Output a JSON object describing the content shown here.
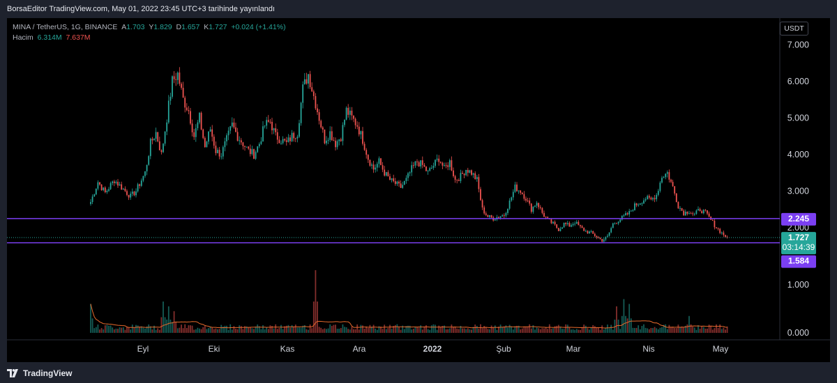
{
  "header": {
    "publish_text": "BorsaEditor TradingView.com, May 01, 2022 23:45 UTC+3 tarihinde yayınlandı"
  },
  "legend": {
    "symbol": "MINA / TetherUS, 1G, BINANCE",
    "open_label": "A",
    "open": "1.703",
    "high_label": "Y",
    "high": "1.829",
    "low_label": "D",
    "low": "1.657",
    "close_label": "K",
    "close": "1.727",
    "change": "+0.024 (+1.41%)",
    "volume_label": "Hacim",
    "volume": "6.314M",
    "volume_ma": "7.637M"
  },
  "currency_button": "USDT",
  "footer": {
    "brand": "TradingView"
  },
  "colors": {
    "up": "#26a69a",
    "down": "#ef5350",
    "level_line": "#7b3ff2",
    "volume_ma": "#e66a2c"
  },
  "chart_data": {
    "type": "candlestick",
    "symbol": "MINA / TetherUS",
    "interval": "1G",
    "exchange": "BINANCE",
    "x_ticks": [
      "Eyl",
      "Eki",
      "Kas",
      "Ara",
      "2022",
      "Şub",
      "Mar",
      "Nis",
      "May"
    ],
    "y_ticks": [
      "7.000",
      "6.000",
      "5.000",
      "4.000",
      "3.000",
      "2.000"
    ],
    "volume_ticks": [
      "1.000",
      "0.000"
    ],
    "ylim": [
      1.1,
      7.5
    ],
    "grid": false,
    "horizontal_levels": [
      2.245,
      1.584
    ],
    "level_labels": [
      "2.245",
      "1.584"
    ],
    "last_price": "1.727",
    "countdown": "03:14:39",
    "close_path": [
      [
        0,
        2.7
      ],
      [
        4,
        3.25
      ],
      [
        8,
        2.95
      ],
      [
        13,
        3.3
      ],
      [
        18,
        3.05
      ],
      [
        22,
        2.85
      ],
      [
        25,
        3.0
      ],
      [
        30,
        3.5
      ],
      [
        33,
        4.3
      ],
      [
        36,
        4.6
      ],
      [
        39,
        4.0
      ],
      [
        42,
        5.0
      ],
      [
        45,
        6.0
      ],
      [
        48,
        6.2
      ],
      [
        51,
        5.5
      ],
      [
        54,
        5.2
      ],
      [
        57,
        4.5
      ],
      [
        60,
        5.0
      ],
      [
        63,
        4.2
      ],
      [
        66,
        4.7
      ],
      [
        69,
        4.1
      ],
      [
        72,
        4.0
      ],
      [
        75,
        4.4
      ],
      [
        78,
        4.8
      ],
      [
        81,
        4.5
      ],
      [
        84,
        4.3
      ],
      [
        87,
        4.1
      ],
      [
        90,
        4.0
      ],
      [
        93,
        4.3
      ],
      [
        96,
        4.8
      ],
      [
        99,
        4.9
      ],
      [
        102,
        4.5
      ],
      [
        105,
        4.4
      ],
      [
        108,
        4.3
      ],
      [
        111,
        4.5
      ],
      [
        114,
        4.6
      ],
      [
        117,
        5.8
      ],
      [
        120,
        6.2
      ],
      [
        123,
        5.6
      ],
      [
        126,
        5.0
      ],
      [
        129,
        4.4
      ],
      [
        132,
        4.6
      ],
      [
        135,
        4.3
      ],
      [
        138,
        4.5
      ],
      [
        141,
        5.2
      ],
      [
        144,
        5.0
      ],
      [
        147,
        4.8
      ],
      [
        150,
        4.4
      ],
      [
        153,
        3.9
      ],
      [
        156,
        3.6
      ],
      [
        159,
        3.8
      ],
      [
        162,
        3.5
      ],
      [
        165,
        3.3
      ],
      [
        168,
        3.2
      ],
      [
        171,
        3.1
      ],
      [
        174,
        3.3
      ],
      [
        177,
        3.6
      ],
      [
        180,
        3.8
      ],
      [
        183,
        3.7
      ],
      [
        186,
        3.5
      ],
      [
        189,
        3.7
      ],
      [
        192,
        3.9
      ],
      [
        195,
        3.6
      ],
      [
        198,
        3.8
      ],
      [
        201,
        3.3
      ],
      [
        204,
        3.4
      ],
      [
        207,
        3.6
      ],
      [
        210,
        3.5
      ],
      [
        213,
        3.3
      ],
      [
        216,
        2.5
      ],
      [
        219,
        2.3
      ],
      [
        222,
        2.25
      ],
      [
        225,
        2.3
      ],
      [
        228,
        2.35
      ],
      [
        231,
        2.7
      ],
      [
        234,
        3.1
      ],
      [
        237,
        3.0
      ],
      [
        240,
        2.8
      ],
      [
        243,
        2.5
      ],
      [
        246,
        2.7
      ],
      [
        249,
        2.4
      ],
      [
        252,
        2.2
      ],
      [
        255,
        2.1
      ],
      [
        258,
        1.95
      ],
      [
        261,
        2.1
      ],
      [
        264,
        2.05
      ],
      [
        267,
        2.15
      ],
      [
        270,
        2.0
      ],
      [
        273,
        1.9
      ],
      [
        276,
        1.85
      ],
      [
        279,
        1.75
      ],
      [
        282,
        1.65
      ],
      [
        285,
        1.75
      ],
      [
        288,
        2.1
      ],
      [
        291,
        2.2
      ],
      [
        294,
        2.3
      ],
      [
        297,
        2.4
      ],
      [
        300,
        2.6
      ],
      [
        303,
        2.7
      ],
      [
        306,
        2.8
      ],
      [
        309,
        2.75
      ],
      [
        312,
        2.9
      ],
      [
        315,
        3.4
      ],
      [
        318,
        3.5
      ],
      [
        321,
        3.1
      ],
      [
        324,
        2.6
      ],
      [
        327,
        2.4
      ],
      [
        330,
        2.45
      ],
      [
        333,
        2.35
      ],
      [
        336,
        2.5
      ],
      [
        339,
        2.4
      ],
      [
        342,
        2.2
      ],
      [
        345,
        2.0
      ],
      [
        348,
        1.85
      ],
      [
        351,
        1.727
      ]
    ],
    "volume_spikes": [
      [
        0,
        0.6
      ],
      [
        40,
        0.65
      ],
      [
        43,
        0.55
      ],
      [
        46,
        0.45
      ],
      [
        124,
        1.3
      ],
      [
        290,
        0.55
      ],
      [
        294,
        0.7
      ],
      [
        297,
        0.6
      ],
      [
        330,
        0.35
      ]
    ],
    "volume_max": 1.3
  }
}
